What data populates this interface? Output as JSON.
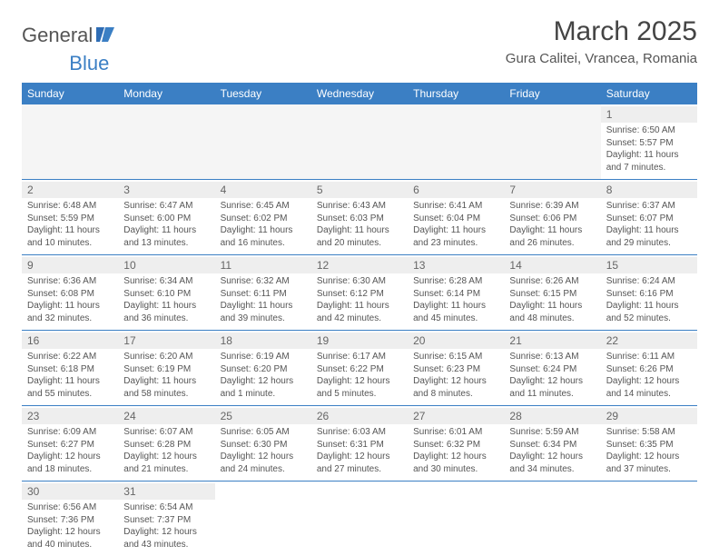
{
  "brand": {
    "part1": "General",
    "part2": "Blue"
  },
  "title": "March 2025",
  "location": "Gura Calitei, Vrancea, Romania",
  "colors": {
    "header_bg": "#3b7fc4",
    "header_fg": "#ffffff",
    "text": "#555555",
    "rule": "#3b7fc4",
    "daybar": "#eeeeee"
  },
  "dayNames": [
    "Sunday",
    "Monday",
    "Tuesday",
    "Wednesday",
    "Thursday",
    "Friday",
    "Saturday"
  ],
  "weeks": [
    [
      null,
      null,
      null,
      null,
      null,
      null,
      {
        "n": "1",
        "sr": "6:50 AM",
        "ss": "5:57 PM",
        "dl": "11 hours and 7 minutes."
      }
    ],
    [
      {
        "n": "2",
        "sr": "6:48 AM",
        "ss": "5:59 PM",
        "dl": "11 hours and 10 minutes."
      },
      {
        "n": "3",
        "sr": "6:47 AM",
        "ss": "6:00 PM",
        "dl": "11 hours and 13 minutes."
      },
      {
        "n": "4",
        "sr": "6:45 AM",
        "ss": "6:02 PM",
        "dl": "11 hours and 16 minutes."
      },
      {
        "n": "5",
        "sr": "6:43 AM",
        "ss": "6:03 PM",
        "dl": "11 hours and 20 minutes."
      },
      {
        "n": "6",
        "sr": "6:41 AM",
        "ss": "6:04 PM",
        "dl": "11 hours and 23 minutes."
      },
      {
        "n": "7",
        "sr": "6:39 AM",
        "ss": "6:06 PM",
        "dl": "11 hours and 26 minutes."
      },
      {
        "n": "8",
        "sr": "6:37 AM",
        "ss": "6:07 PM",
        "dl": "11 hours and 29 minutes."
      }
    ],
    [
      {
        "n": "9",
        "sr": "6:36 AM",
        "ss": "6:08 PM",
        "dl": "11 hours and 32 minutes."
      },
      {
        "n": "10",
        "sr": "6:34 AM",
        "ss": "6:10 PM",
        "dl": "11 hours and 36 minutes."
      },
      {
        "n": "11",
        "sr": "6:32 AM",
        "ss": "6:11 PM",
        "dl": "11 hours and 39 minutes."
      },
      {
        "n": "12",
        "sr": "6:30 AM",
        "ss": "6:12 PM",
        "dl": "11 hours and 42 minutes."
      },
      {
        "n": "13",
        "sr": "6:28 AM",
        "ss": "6:14 PM",
        "dl": "11 hours and 45 minutes."
      },
      {
        "n": "14",
        "sr": "6:26 AM",
        "ss": "6:15 PM",
        "dl": "11 hours and 48 minutes."
      },
      {
        "n": "15",
        "sr": "6:24 AM",
        "ss": "6:16 PM",
        "dl": "11 hours and 52 minutes."
      }
    ],
    [
      {
        "n": "16",
        "sr": "6:22 AM",
        "ss": "6:18 PM",
        "dl": "11 hours and 55 minutes."
      },
      {
        "n": "17",
        "sr": "6:20 AM",
        "ss": "6:19 PM",
        "dl": "11 hours and 58 minutes."
      },
      {
        "n": "18",
        "sr": "6:19 AM",
        "ss": "6:20 PM",
        "dl": "12 hours and 1 minute."
      },
      {
        "n": "19",
        "sr": "6:17 AM",
        "ss": "6:22 PM",
        "dl": "12 hours and 5 minutes."
      },
      {
        "n": "20",
        "sr": "6:15 AM",
        "ss": "6:23 PM",
        "dl": "12 hours and 8 minutes."
      },
      {
        "n": "21",
        "sr": "6:13 AM",
        "ss": "6:24 PM",
        "dl": "12 hours and 11 minutes."
      },
      {
        "n": "22",
        "sr": "6:11 AM",
        "ss": "6:26 PM",
        "dl": "12 hours and 14 minutes."
      }
    ],
    [
      {
        "n": "23",
        "sr": "6:09 AM",
        "ss": "6:27 PM",
        "dl": "12 hours and 18 minutes."
      },
      {
        "n": "24",
        "sr": "6:07 AM",
        "ss": "6:28 PM",
        "dl": "12 hours and 21 minutes."
      },
      {
        "n": "25",
        "sr": "6:05 AM",
        "ss": "6:30 PM",
        "dl": "12 hours and 24 minutes."
      },
      {
        "n": "26",
        "sr": "6:03 AM",
        "ss": "6:31 PM",
        "dl": "12 hours and 27 minutes."
      },
      {
        "n": "27",
        "sr": "6:01 AM",
        "ss": "6:32 PM",
        "dl": "12 hours and 30 minutes."
      },
      {
        "n": "28",
        "sr": "5:59 AM",
        "ss": "6:34 PM",
        "dl": "12 hours and 34 minutes."
      },
      {
        "n": "29",
        "sr": "5:58 AM",
        "ss": "6:35 PM",
        "dl": "12 hours and 37 minutes."
      }
    ],
    [
      {
        "n": "30",
        "sr": "6:56 AM",
        "ss": "7:36 PM",
        "dl": "12 hours and 40 minutes."
      },
      {
        "n": "31",
        "sr": "6:54 AM",
        "ss": "7:37 PM",
        "dl": "12 hours and 43 minutes."
      },
      null,
      null,
      null,
      null,
      null
    ]
  ],
  "labels": {
    "sunrise": "Sunrise:",
    "sunset": "Sunset:",
    "daylight": "Daylight:"
  }
}
